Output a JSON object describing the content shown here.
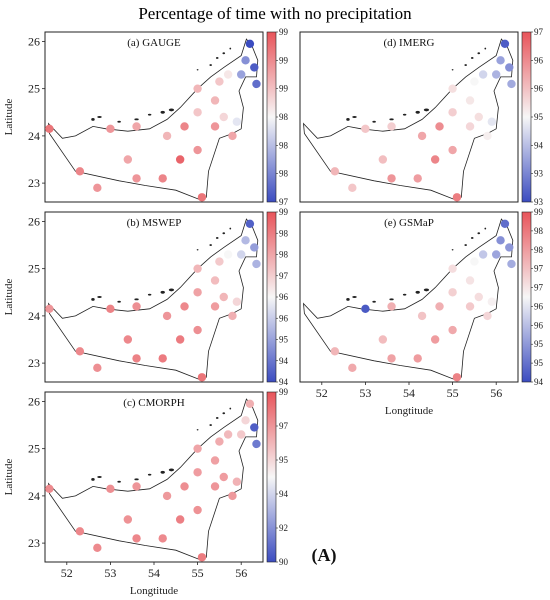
{
  "figure": {
    "title": "Percentage of time with no precipitation",
    "figure_label": "A",
    "ylabel": "Latitude",
    "xlabel": "Longtitude",
    "lat_ticks": [
      "23",
      "24",
      "25",
      "26"
    ],
    "lon_ticks": [
      "52",
      "53",
      "54",
      "55",
      "56"
    ]
  },
  "colorscale": {
    "low_color": "#3b4cc0",
    "mid_color": "#f7f7f7",
    "high_color": "#e8545a"
  },
  "chart_data": [
    {
      "type": "scatter",
      "panel": "(a) GAUGE",
      "x_range": [
        51.5,
        56.5
      ],
      "y_range": [
        22.6,
        26.2
      ],
      "colorbar_ticks": [
        "97",
        "98",
        "98",
        "98",
        "99",
        "99",
        "99"
      ],
      "colorbar_range": [
        97,
        99
      ],
      "points": [
        {
          "lon": 51.6,
          "lat": 24.15,
          "value": 98.8
        },
        {
          "lon": 52.3,
          "lat": 23.25,
          "value": 98.7
        },
        {
          "lon": 52.7,
          "lat": 22.9,
          "value": 98.6
        },
        {
          "lon": 53.0,
          "lat": 24.15,
          "value": 98.6
        },
        {
          "lon": 53.4,
          "lat": 23.5,
          "value": 98.5
        },
        {
          "lon": 53.6,
          "lat": 24.2,
          "value": 98.5
        },
        {
          "lon": 53.6,
          "lat": 23.1,
          "value": 98.6
        },
        {
          "lon": 54.2,
          "lat": 23.1,
          "value": 98.7
        },
        {
          "lon": 54.3,
          "lat": 24.0,
          "value": 98.4
        },
        {
          "lon": 54.6,
          "lat": 23.5,
          "value": 98.9
        },
        {
          "lon": 54.7,
          "lat": 24.2,
          "value": 98.7
        },
        {
          "lon": 55.0,
          "lat": 23.7,
          "value": 98.6
        },
        {
          "lon": 55.1,
          "lat": 22.7,
          "value": 98.8
        },
        {
          "lon": 55.0,
          "lat": 24.5,
          "value": 98.3
        },
        {
          "lon": 55.0,
          "lat": 25.0,
          "value": 98.4
        },
        {
          "lon": 55.4,
          "lat": 24.2,
          "value": 98.6
        },
        {
          "lon": 55.4,
          "lat": 24.75,
          "value": 98.4
        },
        {
          "lon": 55.5,
          "lat": 25.15,
          "value": 98.3
        },
        {
          "lon": 55.6,
          "lat": 24.4,
          "value": 98.2
        },
        {
          "lon": 55.8,
          "lat": 24.0,
          "value": 98.5
        },
        {
          "lon": 55.9,
          "lat": 24.3,
          "value": 97.9
        },
        {
          "lon": 55.7,
          "lat": 25.3,
          "value": 98.1
        },
        {
          "lon": 56.0,
          "lat": 25.3,
          "value": 97.5
        },
        {
          "lon": 56.1,
          "lat": 25.6,
          "value": 97.4
        },
        {
          "lon": 56.2,
          "lat": 25.95,
          "value": 97.0
        },
        {
          "lon": 56.3,
          "lat": 25.45,
          "value": 97.1
        },
        {
          "lon": 56.35,
          "lat": 25.1,
          "value": 97.2
        }
      ]
    },
    {
      "type": "scatter",
      "panel": "(d) IMERG",
      "x_range": [
        51.5,
        56.5
      ],
      "y_range": [
        22.6,
        26.2
      ],
      "colorbar_ticks": [
        "93",
        "93",
        "94",
        "95",
        "96",
        "96",
        "97"
      ],
      "colorbar_range": [
        93,
        97
      ],
      "points": [
        {
          "lon": 52.3,
          "lat": 23.25,
          "value": 95.8
        },
        {
          "lon": 52.7,
          "lat": 22.9,
          "value": 95.6
        },
        {
          "lon": 53.0,
          "lat": 24.15,
          "value": 95.6
        },
        {
          "lon": 53.4,
          "lat": 23.5,
          "value": 95.7
        },
        {
          "lon": 53.6,
          "lat": 24.2,
          "value": 95.5
        },
        {
          "lon": 53.6,
          "lat": 23.1,
          "value": 96.2
        },
        {
          "lon": 54.2,
          "lat": 23.1,
          "value": 96.1
        },
        {
          "lon": 54.3,
          "lat": 24.0,
          "value": 96.0
        },
        {
          "lon": 54.6,
          "lat": 23.5,
          "value": 96.4
        },
        {
          "lon": 54.7,
          "lat": 24.2,
          "value": 96.3
        },
        {
          "lon": 55.0,
          "lat": 23.7,
          "value": 96.0
        },
        {
          "lon": 55.1,
          "lat": 22.7,
          "value": 96.5
        },
        {
          "lon": 55.0,
          "lat": 24.5,
          "value": 95.5
        },
        {
          "lon": 55.0,
          "lat": 25.0,
          "value": 95.3
        },
        {
          "lon": 55.4,
          "lat": 24.2,
          "value": 95.4
        },
        {
          "lon": 55.4,
          "lat": 24.75,
          "value": 95.2
        },
        {
          "lon": 55.5,
          "lat": 25.15,
          "value": 95.0
        },
        {
          "lon": 55.6,
          "lat": 24.4,
          "value": 95.3
        },
        {
          "lon": 55.8,
          "lat": 24.0,
          "value": 95.1
        },
        {
          "lon": 55.9,
          "lat": 24.3,
          "value": 94.8
        },
        {
          "lon": 55.7,
          "lat": 25.3,
          "value": 94.6
        },
        {
          "lon": 56.0,
          "lat": 25.3,
          "value": 94.2
        },
        {
          "lon": 56.1,
          "lat": 25.6,
          "value": 94.0
        },
        {
          "lon": 56.2,
          "lat": 25.95,
          "value": 93.2
        },
        {
          "lon": 56.3,
          "lat": 25.45,
          "value": 93.8
        },
        {
          "lon": 56.35,
          "lat": 25.1,
          "value": 94.1
        }
      ]
    },
    {
      "type": "scatter",
      "panel": "(b) MSWEP",
      "x_range": [
        51.5,
        56.5
      ],
      "y_range": [
        22.6,
        26.2
      ],
      "colorbar_ticks": [
        "94",
        "94",
        "95",
        "96",
        "96",
        "97",
        "98",
        "98",
        "99"
      ],
      "colorbar_range": [
        94,
        99
      ],
      "points": [
        {
          "lon": 51.6,
          "lat": 24.15,
          "value": 98.0
        },
        {
          "lon": 52.3,
          "lat": 23.25,
          "value": 98.2
        },
        {
          "lon": 52.7,
          "lat": 22.9,
          "value": 98.1
        },
        {
          "lon": 53.0,
          "lat": 24.15,
          "value": 98.3
        },
        {
          "lon": 53.4,
          "lat": 23.5,
          "value": 98.2
        },
        {
          "lon": 53.6,
          "lat": 24.2,
          "value": 98.1
        },
        {
          "lon": 53.6,
          "lat": 23.1,
          "value": 98.3
        },
        {
          "lon": 54.2,
          "lat": 23.1,
          "value": 98.4
        },
        {
          "lon": 54.3,
          "lat": 24.0,
          "value": 98.0
        },
        {
          "lon": 54.6,
          "lat": 23.5,
          "value": 98.4
        },
        {
          "lon": 54.7,
          "lat": 24.2,
          "value": 98.2
        },
        {
          "lon": 55.0,
          "lat": 23.7,
          "value": 98.1
        },
        {
          "lon": 55.1,
          "lat": 22.7,
          "value": 98.5
        },
        {
          "lon": 55.0,
          "lat": 24.5,
          "value": 97.8
        },
        {
          "lon": 55.0,
          "lat": 25.0,
          "value": 97.5
        },
        {
          "lon": 55.4,
          "lat": 24.2,
          "value": 97.9
        },
        {
          "lon": 55.4,
          "lat": 24.75,
          "value": 97.4
        },
        {
          "lon": 55.5,
          "lat": 25.15,
          "value": 97.2
        },
        {
          "lon": 55.6,
          "lat": 24.4,
          "value": 97.5
        },
        {
          "lon": 55.8,
          "lat": 24.0,
          "value": 97.6
        },
        {
          "lon": 55.9,
          "lat": 24.3,
          "value": 97.0
        },
        {
          "lon": 55.7,
          "lat": 25.3,
          "value": 96.5
        },
        {
          "lon": 56.0,
          "lat": 25.3,
          "value": 96.0
        },
        {
          "lon": 56.1,
          "lat": 25.6,
          "value": 95.6
        },
        {
          "lon": 56.2,
          "lat": 25.95,
          "value": 94.3
        },
        {
          "lon": 56.3,
          "lat": 25.45,
          "value": 95.2
        },
        {
          "lon": 56.35,
          "lat": 25.1,
          "value": 95.5
        }
      ]
    },
    {
      "type": "scatter",
      "panel": "(e) GSMaP",
      "x_range": [
        51.5,
        56.5
      ],
      "y_range": [
        22.6,
        26.2
      ],
      "colorbar_ticks": [
        "94",
        "95",
        "95",
        "96",
        "96",
        "97",
        "97",
        "98",
        "98",
        "99"
      ],
      "colorbar_range": [
        94,
        99
      ],
      "points": [
        {
          "lon": 52.3,
          "lat": 23.25,
          "value": 97.5
        },
        {
          "lon": 52.7,
          "lat": 22.9,
          "value": 97.7
        },
        {
          "lon": 53.0,
          "lat": 24.15,
          "value": 94.2
        },
        {
          "lon": 53.4,
          "lat": 23.5,
          "value": 97.4
        },
        {
          "lon": 53.6,
          "lat": 24.2,
          "value": 97.6
        },
        {
          "lon": 53.6,
          "lat": 23.1,
          "value": 97.8
        },
        {
          "lon": 54.2,
          "lat": 23.1,
          "value": 97.9
        },
        {
          "lon": 54.3,
          "lat": 24.0,
          "value": 97.3
        },
        {
          "lon": 54.6,
          "lat": 23.5,
          "value": 97.9
        },
        {
          "lon": 54.7,
          "lat": 24.2,
          "value": 97.6
        },
        {
          "lon": 55.0,
          "lat": 23.7,
          "value": 97.7
        },
        {
          "lon": 55.1,
          "lat": 22.7,
          "value": 98.3
        },
        {
          "lon": 55.0,
          "lat": 24.5,
          "value": 97.1
        },
        {
          "lon": 55.0,
          "lat": 25.0,
          "value": 96.9
        },
        {
          "lon": 55.4,
          "lat": 24.2,
          "value": 97.2
        },
        {
          "lon": 55.4,
          "lat": 24.75,
          "value": 96.8
        },
        {
          "lon": 55.5,
          "lat": 25.15,
          "value": 96.5
        },
        {
          "lon": 55.6,
          "lat": 24.4,
          "value": 96.9
        },
        {
          "lon": 55.8,
          "lat": 24.0,
          "value": 97.0
        },
        {
          "lon": 55.9,
          "lat": 24.3,
          "value": 96.6
        },
        {
          "lon": 55.7,
          "lat": 25.3,
          "value": 95.8
        },
        {
          "lon": 56.0,
          "lat": 25.3,
          "value": 95.3
        },
        {
          "lon": 56.1,
          "lat": 25.6,
          "value": 95.0
        },
        {
          "lon": 56.2,
          "lat": 25.95,
          "value": 94.5
        },
        {
          "lon": 56.3,
          "lat": 25.45,
          "value": 95.1
        },
        {
          "lon": 56.35,
          "lat": 25.1,
          "value": 95.4
        }
      ]
    },
    {
      "type": "scatter",
      "panel": "(c) CMORPH",
      "x_range": [
        51.5,
        56.5
      ],
      "y_range": [
        22.6,
        26.2
      ],
      "colorbar_ticks": [
        "90",
        "92",
        "94",
        "95",
        "97",
        "99"
      ],
      "colorbar_range": [
        90,
        99
      ],
      "points": [
        {
          "lon": 51.6,
          "lat": 24.15,
          "value": 97.5
        },
        {
          "lon": 52.3,
          "lat": 23.25,
          "value": 97.6
        },
        {
          "lon": 52.7,
          "lat": 22.9,
          "value": 97.5
        },
        {
          "lon": 53.0,
          "lat": 24.15,
          "value": 97.4
        },
        {
          "lon": 53.4,
          "lat": 23.5,
          "value": 97.3
        },
        {
          "lon": 53.6,
          "lat": 24.2,
          "value": 97.2
        },
        {
          "lon": 53.6,
          "lat": 23.1,
          "value": 97.6
        },
        {
          "lon": 54.2,
          "lat": 23.1,
          "value": 97.5
        },
        {
          "lon": 54.3,
          "lat": 24.0,
          "value": 97.1
        },
        {
          "lon": 54.6,
          "lat": 23.5,
          "value": 97.8
        },
        {
          "lon": 54.7,
          "lat": 24.2,
          "value": 97.4
        },
        {
          "lon": 55.0,
          "lat": 23.7,
          "value": 97.3
        },
        {
          "lon": 55.1,
          "lat": 22.7,
          "value": 97.9
        },
        {
          "lon": 55.0,
          "lat": 24.5,
          "value": 97.0
        },
        {
          "lon": 55.0,
          "lat": 25.0,
          "value": 96.8
        },
        {
          "lon": 55.4,
          "lat": 24.2,
          "value": 97.2
        },
        {
          "lon": 55.4,
          "lat": 24.75,
          "value": 96.9
        },
        {
          "lon": 55.5,
          "lat": 25.15,
          "value": 96.6
        },
        {
          "lon": 55.6,
          "lat": 24.4,
          "value": 97.0
        },
        {
          "lon": 55.8,
          "lat": 24.0,
          "value": 97.1
        },
        {
          "lon": 55.9,
          "lat": 24.3,
          "value": 96.4
        },
        {
          "lon": 55.7,
          "lat": 25.3,
          "value": 96.2
        },
        {
          "lon": 56.0,
          "lat": 25.3,
          "value": 95.8
        },
        {
          "lon": 56.1,
          "lat": 25.6,
          "value": 95.4
        },
        {
          "lon": 56.2,
          "lat": 25.95,
          "value": 96.5
        },
        {
          "lon": 56.3,
          "lat": 25.45,
          "value": 90.5
        },
        {
          "lon": 56.35,
          "lat": 25.1,
          "value": 91.2
        }
      ]
    }
  ]
}
